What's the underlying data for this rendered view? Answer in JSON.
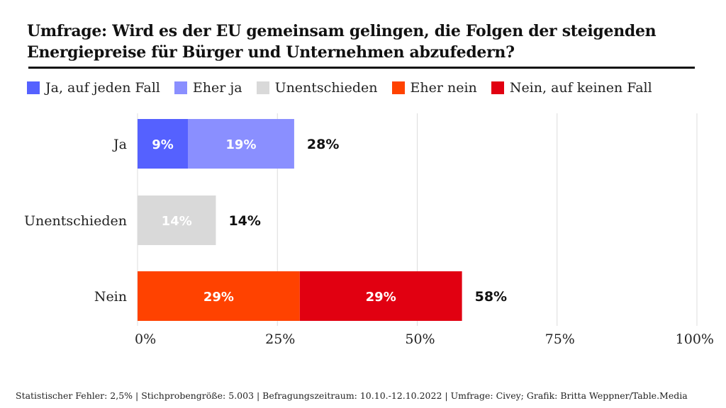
{
  "chart_data": {
    "type": "bar",
    "orientation": "horizontal",
    "stacked": true,
    "title": "Umfrage: Wird es der EU gemeinsam gelingen, die Folgen der steigenden Energiepreise für Bürger und Unternehmen abzufedern?",
    "xlabel": "",
    "ylabel": "",
    "xlim": [
      0,
      100
    ],
    "x_ticks": [
      "0%",
      "25%",
      "50%",
      "75%",
      "100%"
    ],
    "x_tick_values": [
      0,
      25,
      50,
      75,
      100
    ],
    "grid": true,
    "legend_position": "top",
    "categories": [
      "Ja",
      "Unentschieden",
      "Nein"
    ],
    "series": [
      {
        "name": "Ja, auf jeden Fall",
        "color": "#5561ff",
        "values": [
          9,
          0,
          0
        ],
        "labels": [
          "9%",
          "",
          ""
        ]
      },
      {
        "name": "Eher ja",
        "color": "#8a8fff",
        "values": [
          19,
          0,
          0
        ],
        "labels": [
          "19%",
          "",
          ""
        ]
      },
      {
        "name": "Unentschieden",
        "color": "#d9d9d9",
        "values": [
          0,
          14,
          0
        ],
        "labels": [
          "",
          "14%",
          ""
        ]
      },
      {
        "name": "Eher nein",
        "color": "#ff4200",
        "values": [
          0,
          0,
          29
        ],
        "labels": [
          "",
          "",
          "29%"
        ]
      },
      {
        "name": "Nein, auf keinen Fall",
        "color": "#e10011",
        "values": [
          0,
          0,
          29
        ],
        "labels": [
          "",
          "",
          "29%"
        ]
      }
    ],
    "totals": [
      "28%",
      "14%",
      "58%"
    ],
    "total_values": [
      28,
      14,
      58
    ]
  },
  "footer": "Statistischer Fehler: 2,5% | Stichprobengröße: 5.003 | Befragungszeitraum: 10.10.-12.10.2022 | Umfrage: Civey; Grafik: Britta Weppner/Table.Media"
}
